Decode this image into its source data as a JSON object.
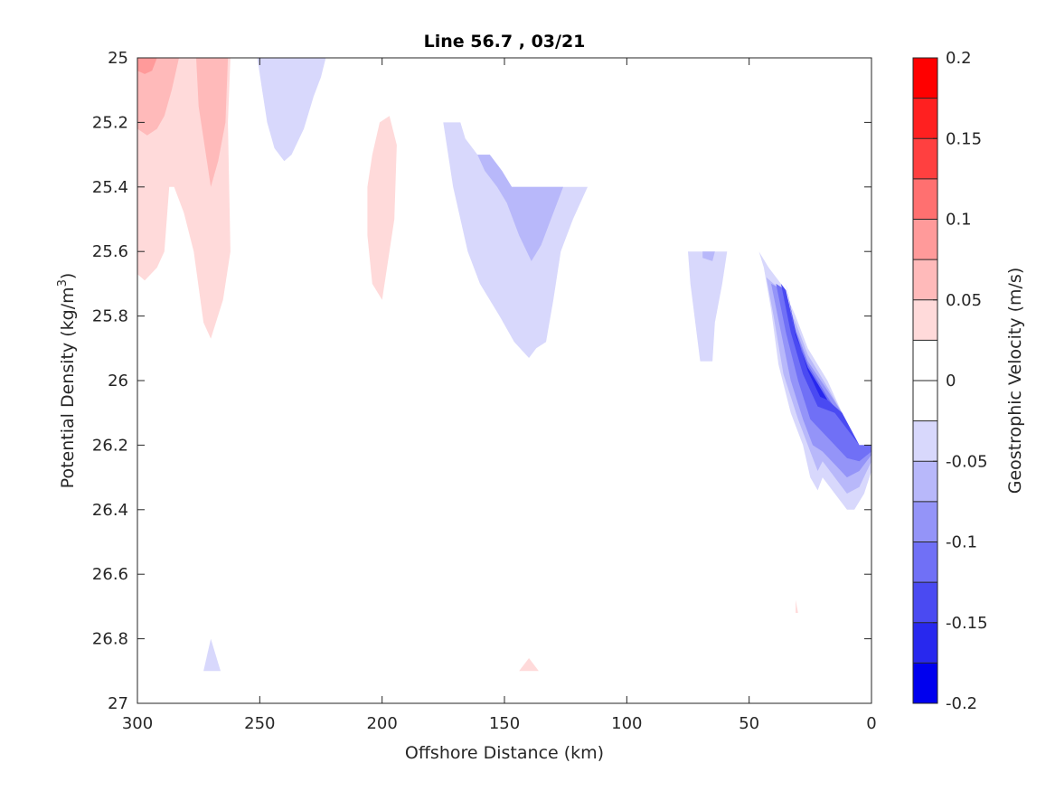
{
  "chart_data": {
    "type": "contour",
    "title": "Line 56.7 , 03/21",
    "xlabel": "Offshore Distance (km)",
    "ylabel": "Potential Density (kg/m",
    "ylabel_sup": "3",
    "ylabel_close": ")",
    "xlim": [
      300,
      0
    ],
    "ylim": [
      25,
      27
    ],
    "x_ticks": [
      "300",
      "250",
      "200",
      "150",
      "100",
      "50",
      "0"
    ],
    "x_tick_values": [
      300,
      250,
      200,
      150,
      100,
      50,
      0
    ],
    "y_ticks": [
      "25",
      "25.2",
      "25.4",
      "25.6",
      "25.8",
      "26",
      "26.2",
      "26.4",
      "26.6",
      "26.8",
      "27"
    ],
    "y_tick_values": [
      25,
      25.2,
      25.4,
      25.6,
      25.8,
      26,
      26.2,
      26.4,
      26.6,
      26.8,
      27
    ],
    "colorbar": {
      "label": "Geostrophic Velocity (m/s)",
      "range": [
        -0.2,
        0.2
      ],
      "ticks": [
        "0.2",
        "0.15",
        "0.1",
        "0.05",
        "0",
        "-0.05",
        "-0.1",
        "-0.15",
        "-0.2"
      ],
      "tick_values": [
        0.2,
        0.15,
        0.1,
        0.05,
        0,
        -0.05,
        -0.1,
        -0.15,
        -0.2
      ],
      "levels": [
        -0.2,
        -0.175,
        -0.15,
        -0.125,
        -0.1,
        -0.075,
        -0.05,
        -0.025,
        0,
        0.025,
        0.05,
        0.075,
        0.1,
        0.125,
        0.15,
        0.175,
        0.2
      ],
      "colors_top_to_bottom": [
        "#ff0000",
        "#ff2020",
        "#ff4040",
        "#ff7070",
        "#ff9a9a",
        "#ffbaba",
        "#ffdada",
        "#ffffff",
        "#ffffff",
        "#d8d8fc",
        "#b8b8fa",
        "#9494f8",
        "#7070f6",
        "#4a4af2",
        "#2828ee",
        "#0000ee"
      ]
    },
    "regions": [
      {
        "level": 0.025,
        "color": "#ffdada",
        "points": [
          [
            300,
            25
          ],
          [
            262,
            25
          ],
          [
            263,
            25.2
          ],
          [
            262,
            25.6
          ],
          [
            265,
            25.75
          ],
          [
            270,
            25.87
          ],
          [
            273,
            25.82
          ],
          [
            277,
            25.6
          ],
          [
            281,
            25.48
          ],
          [
            285,
            25.4
          ],
          [
            287,
            25.4
          ],
          [
            289,
            25.6
          ],
          [
            292,
            25.65
          ],
          [
            297,
            25.69
          ],
          [
            300,
            25.67
          ]
        ]
      },
      {
        "level": 0.05,
        "color": "#ffbaba",
        "points": [
          [
            300,
            25
          ],
          [
            283,
            25
          ],
          [
            286,
            25.1
          ],
          [
            289,
            25.18
          ],
          [
            292,
            25.22
          ],
          [
            296,
            25.24
          ],
          [
            300,
            25.22
          ]
        ]
      },
      {
        "level": 0.05,
        "color": "#ffbaba",
        "points": [
          [
            276,
            25
          ],
          [
            263,
            25
          ],
          [
            264,
            25.2
          ],
          [
            267,
            25.32
          ],
          [
            270,
            25.4
          ],
          [
            272,
            25.3
          ],
          [
            275,
            25.15
          ]
        ]
      },
      {
        "level": 0.075,
        "color": "#ff9a9a",
        "points": [
          [
            300,
            25
          ],
          [
            292,
            25
          ],
          [
            294,
            25.04
          ],
          [
            297,
            25.05
          ],
          [
            300,
            25.04
          ]
        ]
      },
      {
        "level": 0.025,
        "color": "#ffdada",
        "points": [
          [
            204,
            25.3
          ],
          [
            201,
            25.2
          ],
          [
            197,
            25.18
          ],
          [
            194,
            25.27
          ],
          [
            195,
            25.5
          ],
          [
            198,
            25.65
          ],
          [
            200,
            25.75
          ],
          [
            204,
            25.7
          ],
          [
            206,
            25.55
          ],
          [
            206,
            25.4
          ]
        ]
      },
      {
        "level": -0.025,
        "color": "#d8d8fc",
        "points": [
          [
            251,
            25
          ],
          [
            223,
            25
          ],
          [
            225,
            25.06
          ],
          [
            228,
            25.12
          ],
          [
            232,
            25.22
          ],
          [
            237,
            25.3
          ],
          [
            240,
            25.32
          ],
          [
            244,
            25.28
          ],
          [
            247,
            25.2
          ],
          [
            249,
            25.1
          ]
        ]
      },
      {
        "level": -0.025,
        "color": "#d8d8fc",
        "points": [
          [
            175,
            25.2
          ],
          [
            168,
            25.2
          ],
          [
            166,
            25.25
          ],
          [
            161,
            25.3
          ],
          [
            156,
            25.3
          ],
          [
            151,
            25.35
          ],
          [
            147,
            25.4
          ],
          [
            116,
            25.4
          ],
          [
            122,
            25.5
          ],
          [
            127,
            25.6
          ],
          [
            130,
            25.75
          ],
          [
            133,
            25.88
          ],
          [
            137,
            25.9
          ],
          [
            140,
            25.93
          ],
          [
            146,
            25.88
          ],
          [
            152,
            25.8
          ],
          [
            160,
            25.7
          ],
          [
            165,
            25.6
          ],
          [
            168,
            25.5
          ],
          [
            171,
            25.4
          ]
        ]
      },
      {
        "level": -0.05,
        "color": "#b8b8fa",
        "points": [
          [
            161,
            25.3
          ],
          [
            156,
            25.3
          ],
          [
            151,
            25.35
          ],
          [
            147,
            25.4
          ],
          [
            126,
            25.4
          ],
          [
            131,
            25.5
          ],
          [
            135,
            25.58
          ],
          [
            139,
            25.63
          ],
          [
            144,
            25.55
          ],
          [
            149,
            25.45
          ],
          [
            153,
            25.4
          ],
          [
            158,
            25.35
          ]
        ]
      },
      {
        "level": -0.025,
        "color": "#d8d8fc",
        "points": [
          [
            75,
            25.6
          ],
          [
            59,
            25.6
          ],
          [
            61,
            25.7
          ],
          [
            64,
            25.82
          ],
          [
            65,
            25.94
          ],
          [
            70,
            25.94
          ],
          [
            72,
            25.82
          ],
          [
            74,
            25.7
          ]
        ]
      },
      {
        "level": -0.05,
        "color": "#b8b8fa",
        "points": [
          [
            69,
            25.6
          ],
          [
            64,
            25.6
          ],
          [
            65,
            25.63
          ],
          [
            69,
            25.62
          ]
        ]
      },
      {
        "level": -0.025,
        "color": "#d8d8fc",
        "points": [
          [
            46,
            25.6
          ],
          [
            44,
            25.65
          ],
          [
            41,
            25.78
          ],
          [
            38,
            25.95
          ],
          [
            33,
            26.1
          ],
          [
            28,
            26.2
          ],
          [
            25,
            26.3
          ],
          [
            22,
            26.34
          ],
          [
            20,
            26.3
          ],
          [
            15,
            26.35
          ],
          [
            10,
            26.4
          ],
          [
            7,
            26.4
          ],
          [
            3,
            26.35
          ],
          [
            0,
            26.28
          ],
          [
            0,
            26.2
          ],
          [
            5,
            26.2
          ],
          [
            12,
            26.1
          ],
          [
            18,
            26.0
          ],
          [
            26,
            25.9
          ],
          [
            31,
            25.8
          ],
          [
            37,
            25.7
          ],
          [
            42,
            25.65
          ]
        ]
      },
      {
        "level": -0.05,
        "color": "#b8b8fa",
        "points": [
          [
            43,
            25.68
          ],
          [
            40,
            25.8
          ],
          [
            36,
            25.98
          ],
          [
            30,
            26.12
          ],
          [
            25,
            26.22
          ],
          [
            22,
            26.28
          ],
          [
            20,
            26.25
          ],
          [
            15,
            26.3
          ],
          [
            10,
            26.35
          ],
          [
            5,
            26.33
          ],
          [
            0,
            26.25
          ],
          [
            0,
            26.2
          ],
          [
            5,
            26.2
          ],
          [
            12,
            26.1
          ],
          [
            18,
            26.02
          ],
          [
            26,
            25.92
          ],
          [
            31,
            25.82
          ],
          [
            37,
            25.72
          ]
        ]
      },
      {
        "level": -0.075,
        "color": "#9494f8",
        "points": [
          [
            41,
            25.7
          ],
          [
            37,
            25.85
          ],
          [
            33,
            26.0
          ],
          [
            28,
            26.12
          ],
          [
            24,
            26.2
          ],
          [
            20,
            26.22
          ],
          [
            15,
            26.26
          ],
          [
            10,
            26.3
          ],
          [
            5,
            26.28
          ],
          [
            0,
            26.23
          ],
          [
            0,
            26.2
          ],
          [
            5,
            26.2
          ],
          [
            12,
            26.1
          ],
          [
            18,
            26.03
          ],
          [
            26,
            25.94
          ],
          [
            31,
            25.84
          ],
          [
            36,
            25.72
          ]
        ]
      },
      {
        "level": -0.1,
        "color": "#7070f6",
        "points": [
          [
            39,
            25.7
          ],
          [
            35,
            25.85
          ],
          [
            30,
            26.0
          ],
          [
            25,
            26.12
          ],
          [
            20,
            26.16
          ],
          [
            15,
            26.2
          ],
          [
            10,
            26.24
          ],
          [
            5,
            26.25
          ],
          [
            0,
            26.22
          ],
          [
            0,
            26.2
          ],
          [
            5,
            26.2
          ],
          [
            12,
            26.12
          ],
          [
            18,
            26.05
          ],
          [
            26,
            25.95
          ],
          [
            31,
            25.85
          ],
          [
            35,
            25.72
          ]
        ]
      },
      {
        "level": -0.125,
        "color": "#4a4af2",
        "points": [
          [
            37,
            25.7
          ],
          [
            33,
            25.85
          ],
          [
            28,
            25.98
          ],
          [
            22,
            26.08
          ],
          [
            15,
            26.1
          ],
          [
            10,
            26.15
          ],
          [
            5,
            26.2
          ],
          [
            12,
            26.1
          ],
          [
            18,
            26.06
          ],
          [
            26,
            25.96
          ],
          [
            31,
            25.86
          ],
          [
            35,
            25.72
          ]
        ]
      },
      {
        "level": -0.15,
        "color": "#2828ee",
        "points": [
          [
            35,
            25.7
          ],
          [
            31,
            25.85
          ],
          [
            26,
            25.97
          ],
          [
            21,
            26.05
          ],
          [
            18,
            26.06
          ],
          [
            26,
            25.96
          ],
          [
            31,
            25.86
          ]
        ]
      },
      {
        "level": -0.025,
        "color": "#d8d8fc",
        "points": [
          [
            270,
            26.8
          ],
          [
            273,
            26.9
          ],
          [
            266,
            26.9
          ]
        ]
      },
      {
        "level": 0.025,
        "color": "#ffdada",
        "points": [
          [
            140,
            26.86
          ],
          [
            144,
            26.9
          ],
          [
            136,
            26.9
          ]
        ]
      },
      {
        "level": 0.025,
        "color": "#ffdada",
        "points": [
          [
            31,
            26.68
          ],
          [
            30,
            26.72
          ],
          [
            31,
            26.72
          ]
        ]
      }
    ]
  }
}
